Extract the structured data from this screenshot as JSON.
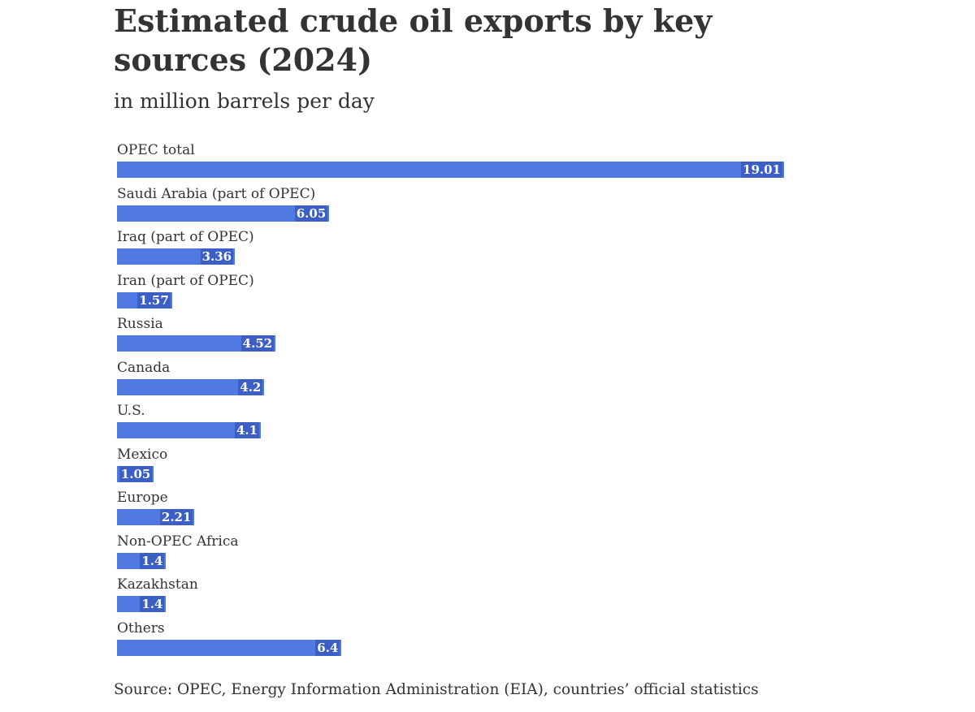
{
  "chart_data": {
    "type": "bar",
    "orientation": "horizontal",
    "title": "Estimated crude oil exports by key sources (2024)",
    "subtitle": "in million barrels per day",
    "categories": [
      "OPEC total",
      "Saudi Arabia (part of OPEC)",
      "Iraq (part of OPEC)",
      "Iran (part of OPEC)",
      "Russia",
      "Canada",
      "U.S.",
      "Mexico",
      "Europe",
      "Non-OPEC Africa",
      "Kazakhstan",
      "Others"
    ],
    "values": [
      19.01,
      6.05,
      3.36,
      1.57,
      4.52,
      4.2,
      4.1,
      1.05,
      2.21,
      1.4,
      1.4,
      6.4
    ],
    "value_labels": [
      "19.01",
      "6.05",
      "3.36",
      "1.57",
      "4.52",
      "4.2",
      "4.1",
      "1.05",
      "2.21",
      "1.4",
      "1.4",
      "6.4"
    ],
    "xlim": [
      0,
      19.01
    ],
    "grid": false,
    "bar_color": "#5079e1",
    "source": "Source: OPEC, Energy Information Administration (EIA), countries’ official statistics"
  }
}
